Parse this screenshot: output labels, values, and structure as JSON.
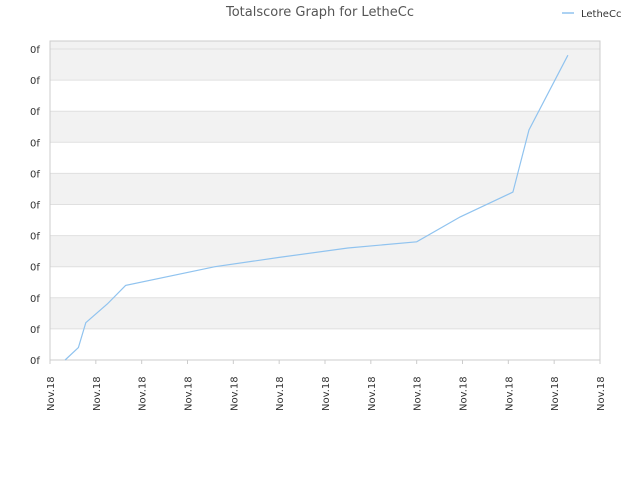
{
  "chart_data": {
    "type": "line",
    "title": "Totalscore Graph for LetheCc",
    "legend": {
      "position": "top-right",
      "entries": [
        "LetheCc"
      ]
    },
    "x_tick_labels": [
      "Nov.18",
      "Nov.18",
      "Nov.18",
      "Nov.18",
      "Nov.18",
      "Nov.18",
      "Nov.18",
      "Nov.18",
      "Nov.18",
      "Nov.18",
      "Nov.18",
      "Nov.18",
      "Nov.18"
    ],
    "y_tick_labels": [
      "0f",
      "0f",
      "0f",
      "0f",
      "0f",
      "0f",
      "0f",
      "0f",
      "0f",
      "0f",
      "0f"
    ],
    "ylim": [
      0,
      10
    ],
    "xlim": [
      0,
      12
    ],
    "grid": "horizontal alternating bands",
    "colors": {
      "series": "#90c3ef",
      "band": "#f2f2f2",
      "grid": "#e0e0e0",
      "axis": "#cccccc"
    },
    "series": [
      {
        "name": "LetheCc",
        "x": [
          0.33,
          0.62,
          0.78,
          1.25,
          1.65,
          3.6,
          5.0,
          6.5,
          8.0,
          8.95,
          10.1,
          10.45,
          11.3
        ],
        "y": [
          0.0,
          0.4,
          1.2,
          1.8,
          2.4,
          3.0,
          3.3,
          3.6,
          3.8,
          4.6,
          5.4,
          7.4,
          9.8
        ]
      }
    ]
  }
}
